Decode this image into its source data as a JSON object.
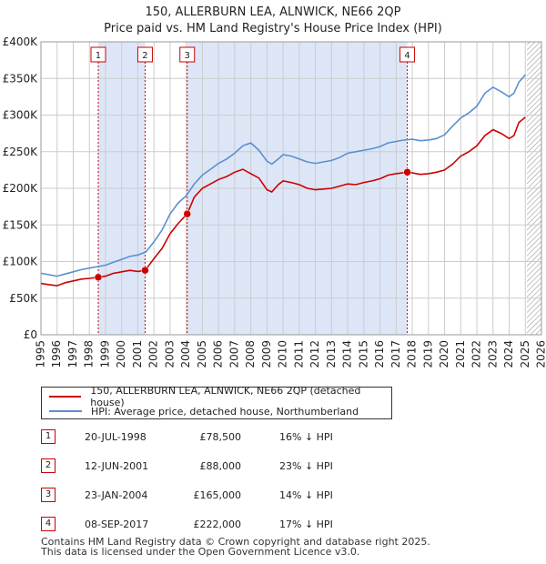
{
  "chart_data": {
    "type": "line",
    "title": "150, ALLERBURN LEA, ALNWICK, NE66 2QP",
    "subtitle": "Price paid vs. HM Land Registry's House Price Index (HPI)",
    "x_range": [
      1995,
      2026
    ],
    "ylim": [
      0,
      400000
    ],
    "y_ticks": [
      {
        "value": 0,
        "label": "£0"
      },
      {
        "value": 50000,
        "label": "£50K"
      },
      {
        "value": 100000,
        "label": "£100K"
      },
      {
        "value": 150000,
        "label": "£150K"
      },
      {
        "value": 200000,
        "label": "£200K"
      },
      {
        "value": 250000,
        "label": "£250K"
      },
      {
        "value": 300000,
        "label": "£300K"
      },
      {
        "value": 350000,
        "label": "£350K"
      },
      {
        "value": 400000,
        "label": "£400K"
      }
    ],
    "x_ticks": [
      "1995",
      "1996",
      "1997",
      "1998",
      "1999",
      "2000",
      "2001",
      "2002",
      "2003",
      "2004",
      "2005",
      "2006",
      "2007",
      "2008",
      "2009",
      "2010",
      "2011",
      "2012",
      "2013",
      "2014",
      "2015",
      "2016",
      "2017",
      "2018",
      "2019",
      "2020",
      "2021",
      "2022",
      "2023",
      "2024",
      "2025",
      "2026"
    ],
    "grid": true,
    "shaded_periods": [
      [
        1998.55,
        2001.45
      ],
      [
        2004.06,
        2017.69
      ]
    ],
    "future_hatch_from": 2025.1,
    "series": [
      {
        "name": "150, ALLERBURN LEA, ALNWICK, NE66 2QP (detached house)",
        "color": "#cc0000",
        "points": [
          [
            1995,
            70000
          ],
          [
            1995.5,
            68500
          ],
          [
            1996,
            67000
          ],
          [
            1996.5,
            71000
          ],
          [
            1997,
            73500
          ],
          [
            1997.5,
            76000
          ],
          [
            1998,
            77000
          ],
          [
            1998.55,
            78500
          ],
          [
            1999,
            80000
          ],
          [
            1999.5,
            84000
          ],
          [
            2000,
            86000
          ],
          [
            2000.5,
            88000
          ],
          [
            2001,
            86500
          ],
          [
            2001.45,
            88000
          ],
          [
            2002,
            104000
          ],
          [
            2002.5,
            118000
          ],
          [
            2003,
            138000
          ],
          [
            2003.5,
            152000
          ],
          [
            2004.06,
            165000
          ],
          [
            2004.5,
            188000
          ],
          [
            2005,
            200000
          ],
          [
            2005.5,
            206000
          ],
          [
            2006,
            212000
          ],
          [
            2006.5,
            216000
          ],
          [
            2007,
            222000
          ],
          [
            2007.5,
            226000
          ],
          [
            2008,
            220000
          ],
          [
            2008.5,
            214000
          ],
          [
            2009,
            198000
          ],
          [
            2009.3,
            195000
          ],
          [
            2009.7,
            205000
          ],
          [
            2010,
            210000
          ],
          [
            2010.5,
            208000
          ],
          [
            2011,
            205000
          ],
          [
            2011.5,
            200000
          ],
          [
            2012,
            198000
          ],
          [
            2012.5,
            199000
          ],
          [
            2013,
            200000
          ],
          [
            2013.5,
            203000
          ],
          [
            2014,
            206000
          ],
          [
            2014.5,
            205000
          ],
          [
            2015,
            208000
          ],
          [
            2015.5,
            210000
          ],
          [
            2016,
            213000
          ],
          [
            2016.5,
            218000
          ],
          [
            2017,
            220000
          ],
          [
            2017.69,
            222000
          ],
          [
            2018,
            221000
          ],
          [
            2018.5,
            219000
          ],
          [
            2019,
            220000
          ],
          [
            2019.5,
            222000
          ],
          [
            2020,
            225000
          ],
          [
            2020.5,
            233000
          ],
          [
            2021,
            244000
          ],
          [
            2021.5,
            250000
          ],
          [
            2022,
            258000
          ],
          [
            2022.5,
            272000
          ],
          [
            2023,
            280000
          ],
          [
            2023.5,
            275000
          ],
          [
            2024,
            268000
          ],
          [
            2024.3,
            272000
          ],
          [
            2024.6,
            290000
          ],
          [
            2025,
            297000
          ]
        ]
      },
      {
        "name": "HPI: Average price, detached house, Northumberland",
        "color": "#5b8fd0",
        "points": [
          [
            1995,
            84000
          ],
          [
            1995.5,
            82000
          ],
          [
            1996,
            80000
          ],
          [
            1996.5,
            83000
          ],
          [
            1997,
            86000
          ],
          [
            1997.5,
            89000
          ],
          [
            1998,
            91000
          ],
          [
            1998.5,
            93000
          ],
          [
            1999,
            95000
          ],
          [
            1999.5,
            99000
          ],
          [
            2000,
            103000
          ],
          [
            2000.5,
            107000
          ],
          [
            2001,
            109000
          ],
          [
            2001.5,
            113000
          ],
          [
            2002,
            127000
          ],
          [
            2002.5,
            143000
          ],
          [
            2003,
            165000
          ],
          [
            2003.5,
            180000
          ],
          [
            2004,
            190000
          ],
          [
            2004.5,
            206000
          ],
          [
            2005,
            218000
          ],
          [
            2005.5,
            226000
          ],
          [
            2006,
            234000
          ],
          [
            2006.5,
            240000
          ],
          [
            2007,
            248000
          ],
          [
            2007.5,
            258000
          ],
          [
            2008,
            262000
          ],
          [
            2008.5,
            252000
          ],
          [
            2009,
            237000
          ],
          [
            2009.3,
            233000
          ],
          [
            2009.7,
            240000
          ],
          [
            2010,
            246000
          ],
          [
            2010.5,
            244000
          ],
          [
            2011,
            240000
          ],
          [
            2011.5,
            236000
          ],
          [
            2012,
            234000
          ],
          [
            2012.5,
            236000
          ],
          [
            2013,
            238000
          ],
          [
            2013.5,
            242000
          ],
          [
            2014,
            248000
          ],
          [
            2014.5,
            250000
          ],
          [
            2015,
            252000
          ],
          [
            2015.5,
            254000
          ],
          [
            2016,
            257000
          ],
          [
            2016.5,
            262000
          ],
          [
            2017,
            264000
          ],
          [
            2017.5,
            266000
          ],
          [
            2018,
            267000
          ],
          [
            2018.5,
            265000
          ],
          [
            2019,
            266000
          ],
          [
            2019.5,
            268000
          ],
          [
            2020,
            273000
          ],
          [
            2020.5,
            285000
          ],
          [
            2021,
            296000
          ],
          [
            2021.5,
            303000
          ],
          [
            2022,
            312000
          ],
          [
            2022.5,
            330000
          ],
          [
            2023,
            338000
          ],
          [
            2023.5,
            332000
          ],
          [
            2024,
            325000
          ],
          [
            2024.3,
            330000
          ],
          [
            2024.6,
            345000
          ],
          [
            2025,
            355000
          ]
        ]
      }
    ],
    "markers": [
      {
        "id": "1",
        "x": 1998.55,
        "y": 78500
      },
      {
        "id": "2",
        "x": 2001.45,
        "y": 88000
      },
      {
        "id": "3",
        "x": 2004.06,
        "y": 165000
      },
      {
        "id": "4",
        "x": 2017.69,
        "y": 222000
      }
    ]
  },
  "legend": {
    "red_label": "150, ALLERBURN LEA, ALNWICK, NE66 2QP (detached house)",
    "blue_label": "HPI: Average price, detached house, Northumberland"
  },
  "sales": [
    {
      "num": "1",
      "date": "20-JUL-1998",
      "price": "£78,500",
      "hpi": "16% ↓ HPI"
    },
    {
      "num": "2",
      "date": "12-JUN-2001",
      "price": "£88,000",
      "hpi": "23% ↓ HPI"
    },
    {
      "num": "3",
      "date": "23-JAN-2004",
      "price": "£165,000",
      "hpi": "14% ↓ HPI"
    },
    {
      "num": "4",
      "date": "08-SEP-2017",
      "price": "£222,000",
      "hpi": "17% ↓ HPI"
    }
  ],
  "footer": {
    "line1": "Contains HM Land Registry data © Crown copyright and database right 2025.",
    "line2": "This data is licensed under the Open Government Licence v3.0."
  },
  "colors": {
    "red": "#cc0000",
    "blue": "#5b8fd0",
    "shade": "#dde6f7",
    "grid": "#cccccc"
  }
}
